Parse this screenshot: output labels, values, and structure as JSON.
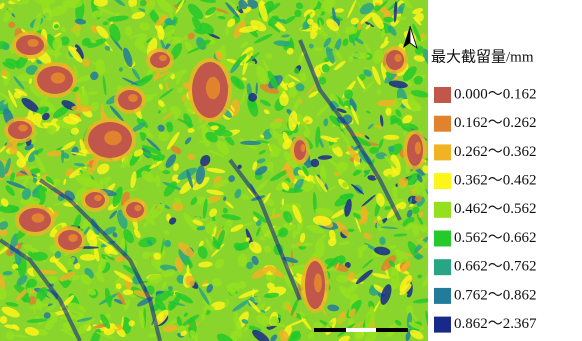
{
  "legend": {
    "title": "最大截留量/mm",
    "items": [
      {
        "label": "0.000～0.162",
        "color": "#c1564a"
      },
      {
        "label": "0.162～0.262",
        "color": "#e0822e"
      },
      {
        "label": "0.262～0.362",
        "color": "#efb324"
      },
      {
        "label": "0.362～0.462",
        "color": "#fbf51a"
      },
      {
        "label": "0.462～0.562",
        "color": "#95e01e"
      },
      {
        "label": "0.562～0.662",
        "color": "#25c92b"
      },
      {
        "label": "0.662～0.762",
        "color": "#28a584"
      },
      {
        "label": "0.762～0.862",
        "color": "#237b9a"
      },
      {
        "label": "0.862～2.367",
        "color": "#172a8a"
      }
    ]
  }
}
